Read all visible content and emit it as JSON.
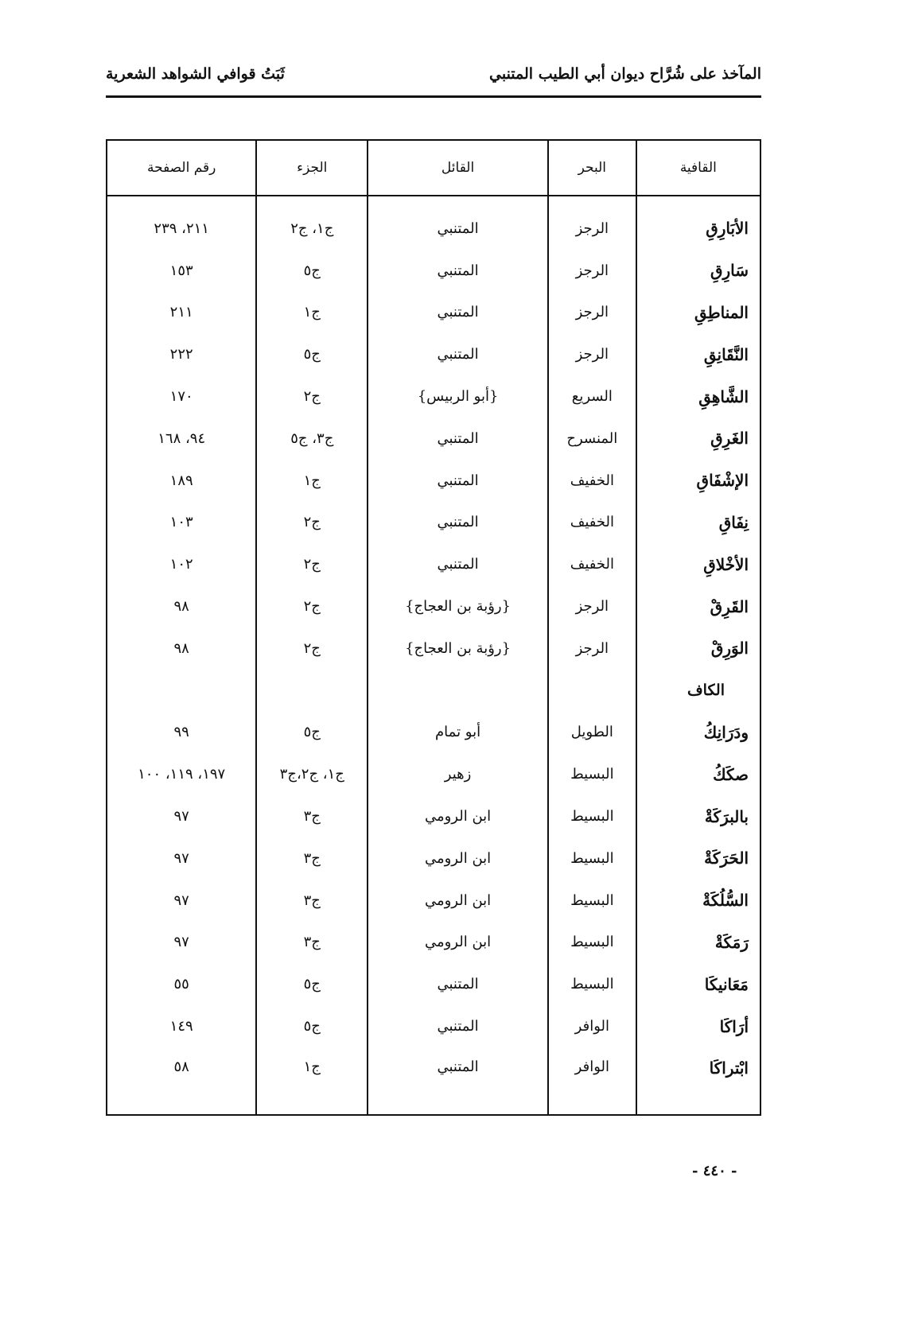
{
  "header": {
    "book_title": "المآخذ على شُرَّاح ديوان أبي الطيب المتنبي",
    "section_title": "ثَبَتُ قوافي الشواهد الشعرية"
  },
  "table": {
    "columns": [
      "القافية",
      "البحر",
      "القائل",
      "الجزء",
      "رقم الصفحة"
    ],
    "rows": [
      {
        "qafia": "الأبَارِقِ",
        "bahr": "الرجز",
        "qail": "المتنبي",
        "juz": "ج١، ج٢",
        "page": "٢١١، ٢٣٩"
      },
      {
        "qafia": "سَارِقِ",
        "bahr": "الرجز",
        "qail": "المتنبي",
        "juz": "ج٥",
        "page": "١٥٣"
      },
      {
        "qafia": "المناطِقِ",
        "bahr": "الرجز",
        "qail": "المتنبي",
        "juz": "ج١",
        "page": "٢١١"
      },
      {
        "qafia": "النَّقَانِقِ",
        "bahr": "الرجز",
        "qail": "المتنبي",
        "juz": "ج٥",
        "page": "٢٢٢"
      },
      {
        "qafia": "الشَّاهِقِ",
        "bahr": "السريع",
        "qail": "{أبو الربيس}",
        "juz": "ج٢",
        "page": "١٧٠"
      },
      {
        "qafia": "الغَرِقِ",
        "bahr": "المنسرح",
        "qail": "المتنبي",
        "juz": "ج٣، ج٥",
        "page": "٩٤، ١٦٨"
      },
      {
        "qafia": "الإشْفَاقِ",
        "bahr": "الخفيف",
        "qail": "المتنبي",
        "juz": "ج١",
        "page": "١٨٩"
      },
      {
        "qafia": "نِفَاقِ",
        "bahr": "الخفيف",
        "qail": "المتنبي",
        "juz": "ج٢",
        "page": "١٠٣"
      },
      {
        "qafia": "الأخْلاقِ",
        "bahr": "الخفيف",
        "qail": "المتنبي",
        "juz": "ج٢",
        "page": "١٠٢"
      },
      {
        "qafia": "القَرِقْ",
        "bahr": "الرجز",
        "qail": "{رؤبة بن العجاج}",
        "juz": "ج٢",
        "page": "٩٨"
      },
      {
        "qafia": "الوَرِقْ",
        "bahr": "الرجز",
        "qail": "{رؤبة بن العجاج}",
        "juz": "ج٢",
        "page": "٩٨"
      },
      {
        "section": "الكاف"
      },
      {
        "qafia": "ودَرَانِكُ",
        "bahr": "الطويل",
        "qail": "أبو تمام",
        "juz": "ج٥",
        "page": "٩٩"
      },
      {
        "qafia": "صكَكُ",
        "bahr": "البسيط",
        "qail": "زهير",
        "juz": "ج١، ج٢،ج٣",
        "page": "١٩٧، ١١٩، ١٠٠"
      },
      {
        "qafia": "بالبرَكَةْ",
        "bahr": "البسيط",
        "qail": "ابن الرومي",
        "juz": "ج٣",
        "page": "٩٧"
      },
      {
        "qafia": "الحَرَكَةْ",
        "bahr": "البسيط",
        "qail": "ابن الرومي",
        "juz": "ج٣",
        "page": "٩٧"
      },
      {
        "qafia": "السُّلُكَةْ",
        "bahr": "البسيط",
        "qail": "ابن الرومي",
        "juz": "ج٣",
        "page": "٩٧"
      },
      {
        "qafia": "رَمَكَةْ",
        "bahr": "البسيط",
        "qail": "ابن الرومي",
        "juz": "ج٣",
        "page": "٩٧"
      },
      {
        "qafia": "مَعَانيكَا",
        "bahr": "البسيط",
        "qail": "المتنبي",
        "juz": "ج٥",
        "page": "٥٥"
      },
      {
        "qafia": "أرَاكَا",
        "bahr": "الوافر",
        "qail": "المتنبي",
        "juz": "ج٥",
        "page": "١٤٩"
      },
      {
        "qafia": "ابْتراكَا",
        "bahr": "الوافر",
        "qail": "المتنبي",
        "juz": "ج١",
        "page": "٥٨"
      }
    ]
  },
  "footer": {
    "page_number": "- ٤٤٠ -"
  }
}
